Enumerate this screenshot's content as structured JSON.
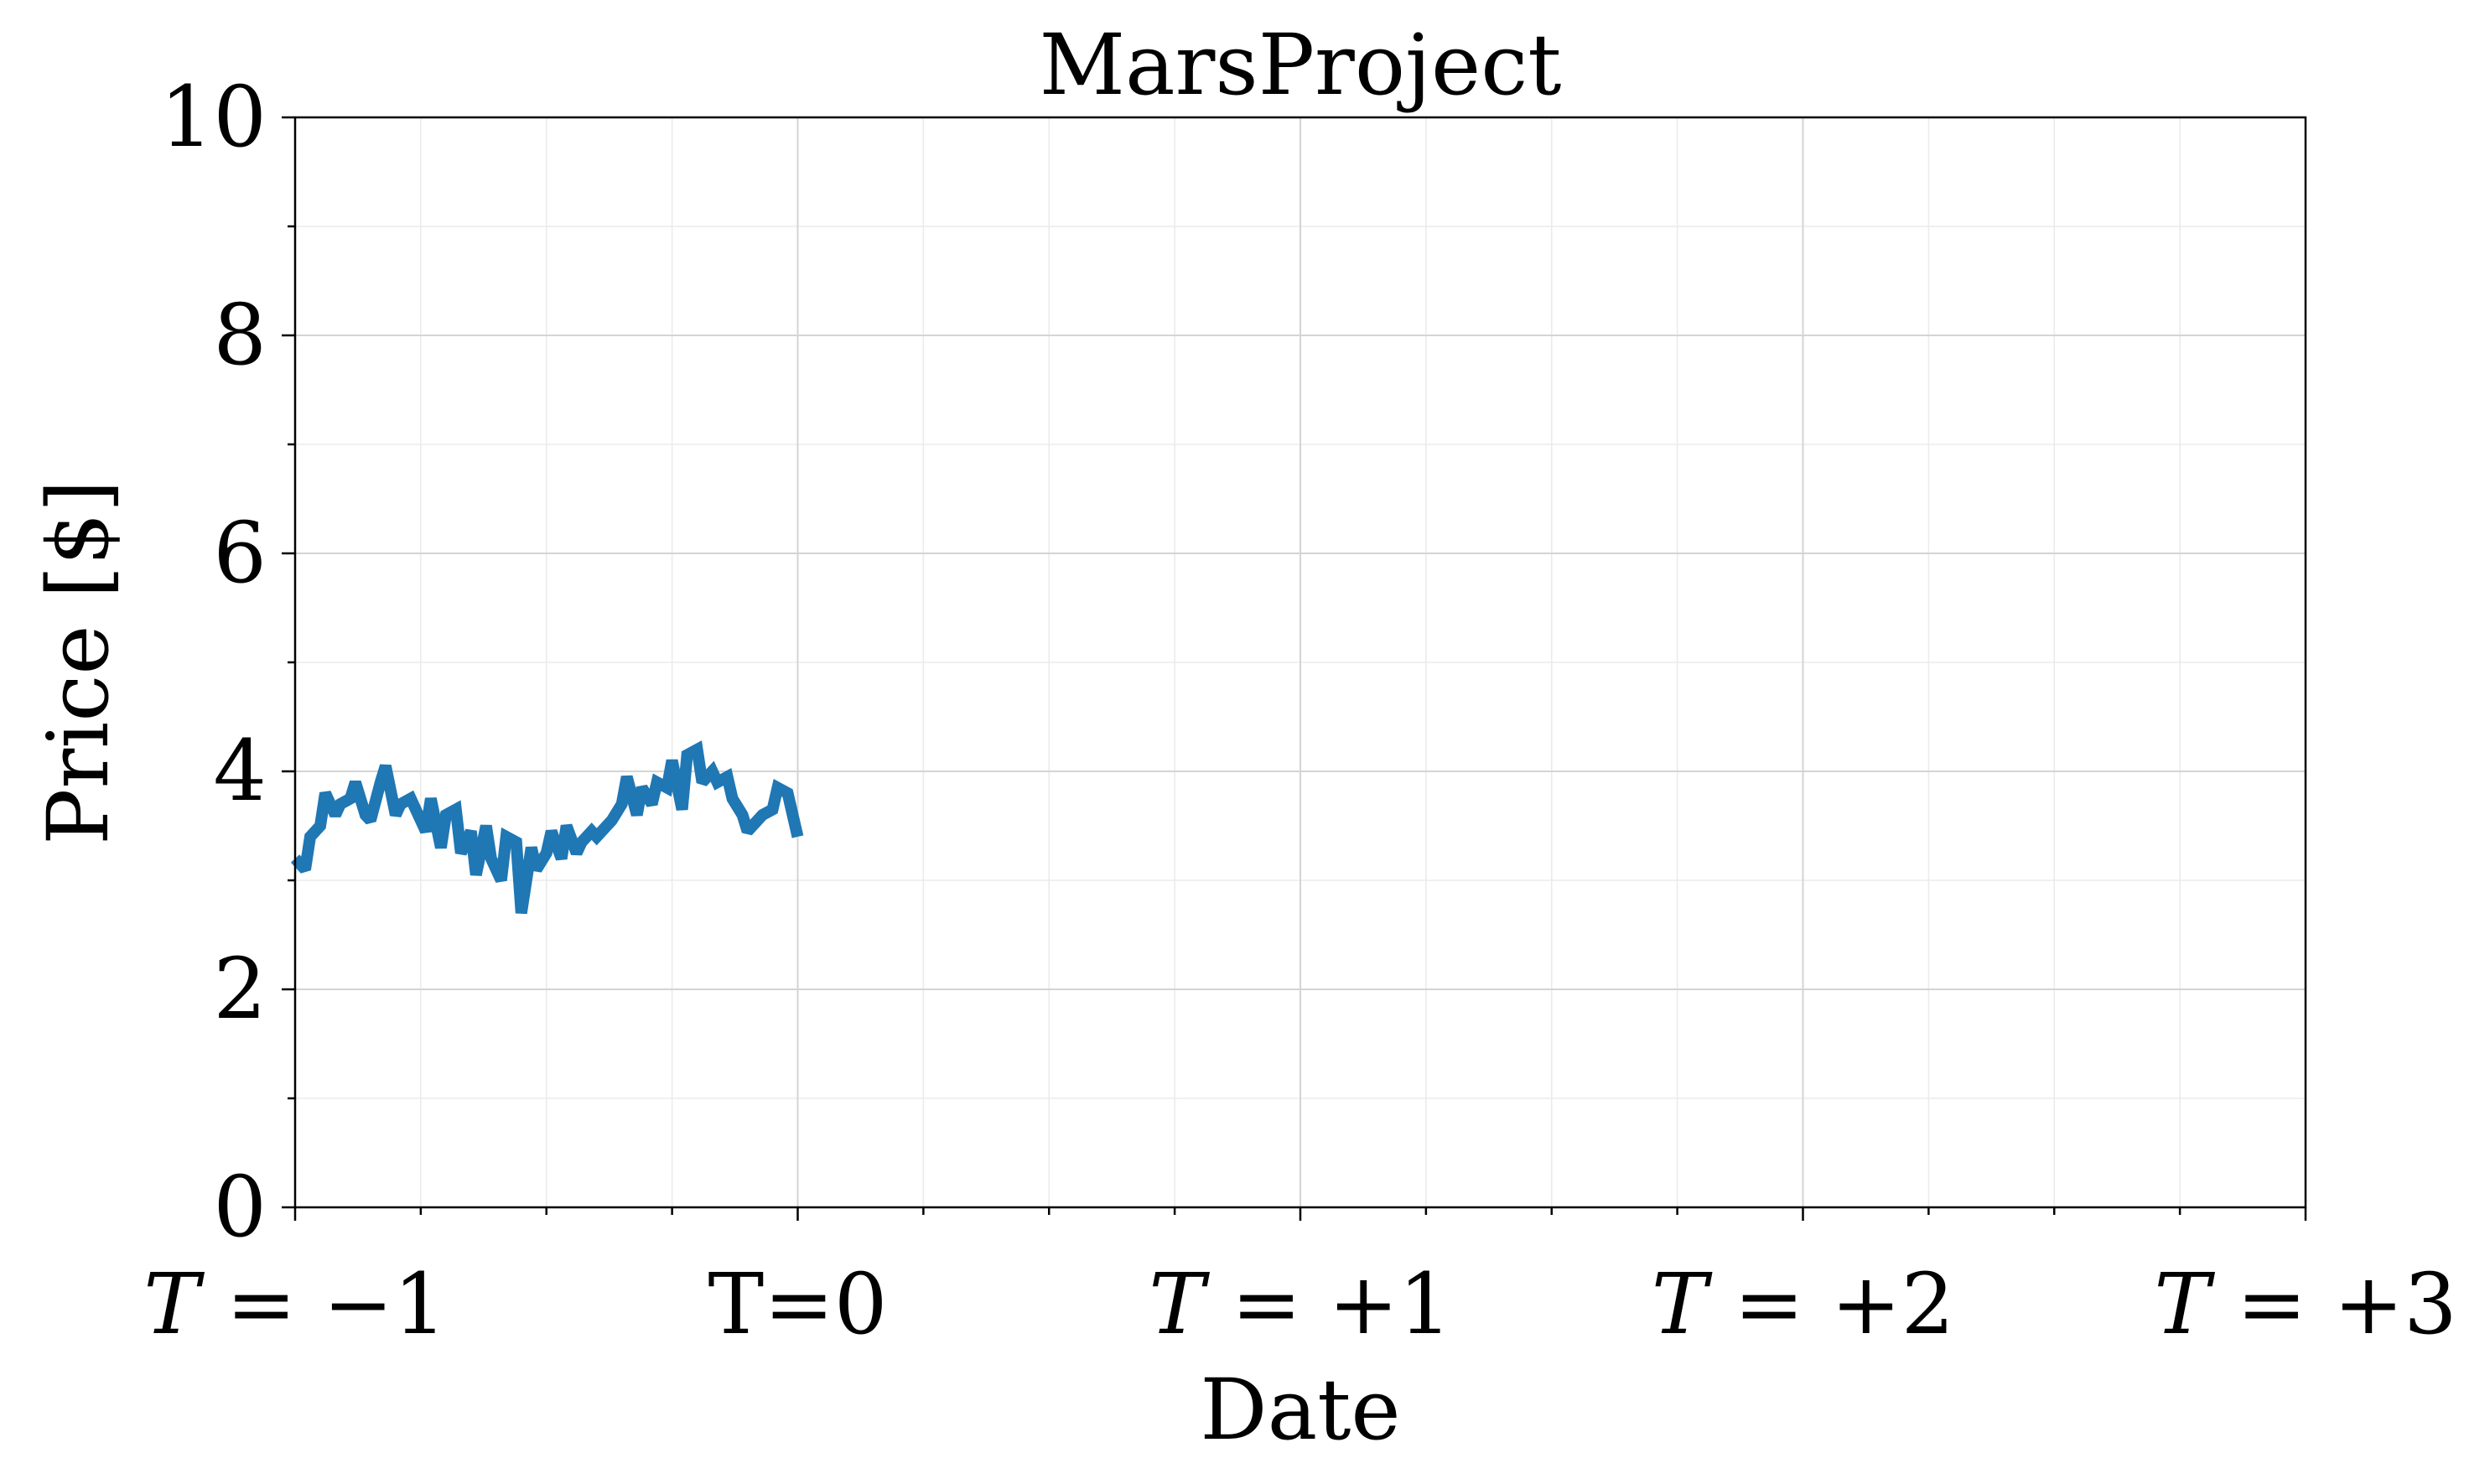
{
  "chart_data": {
    "type": "line",
    "title": "MarsProject",
    "xlabel": "Date",
    "ylabel": "Price [$]",
    "xlim": [
      -1,
      3
    ],
    "ylim": [
      0,
      10
    ],
    "grid": true,
    "legend": "none",
    "x_ticks": [
      {
        "value": -1,
        "label": "T = −1",
        "italic_t": true
      },
      {
        "value": 0,
        "label": "T=0",
        "italic_t": false
      },
      {
        "value": 1,
        "label": "T = +1",
        "italic_t": true
      },
      {
        "value": 2,
        "label": "T = +2",
        "italic_t": true
      },
      {
        "value": 3,
        "label": "T = +3",
        "italic_t": true
      }
    ],
    "y_ticks": [
      {
        "value": 0,
        "label": "0"
      },
      {
        "value": 2,
        "label": "2"
      },
      {
        "value": 4,
        "label": "4"
      },
      {
        "value": 6,
        "label": "6"
      },
      {
        "value": 8,
        "label": "8"
      },
      {
        "value": 10,
        "label": "10"
      }
    ],
    "series": [
      {
        "color": "#1f77b4",
        "x": [
          -1.0,
          -0.98,
          -0.97,
          -0.95,
          -0.94,
          -0.92,
          -0.91,
          -0.89,
          -0.88,
          -0.86,
          -0.85,
          -0.83,
          -0.82,
          -0.8,
          -0.79,
          -0.77,
          -0.76,
          -0.74,
          -0.73,
          -0.71,
          -0.7,
          -0.68,
          -0.67,
          -0.65,
          -0.64,
          -0.62,
          -0.61,
          -0.59,
          -0.58,
          -0.56,
          -0.55,
          -0.53,
          -0.52,
          -0.5,
          -0.49,
          -0.47,
          -0.46,
          -0.44,
          -0.43,
          -0.41,
          -0.4,
          -0.38,
          -0.37,
          -0.35,
          -0.34,
          -0.32,
          -0.31,
          -0.29,
          -0.28,
          -0.26,
          -0.25,
          -0.23,
          -0.22,
          -0.2,
          -0.19,
          -0.17,
          -0.16,
          -0.14,
          -0.13,
          -0.11,
          -0.1,
          -0.08,
          -0.07,
          -0.05,
          -0.04,
          -0.02,
          -0.01,
          0.0
        ],
        "y": [
          3.2,
          3.1,
          3.4,
          3.5,
          3.8,
          3.6,
          3.7,
          3.75,
          3.9,
          3.6,
          3.55,
          3.9,
          4.05,
          3.6,
          3.7,
          3.75,
          3.65,
          3.45,
          3.75,
          3.3,
          3.6,
          3.65,
          3.25,
          3.45,
          3.05,
          3.5,
          3.2,
          3.0,
          3.4,
          3.35,
          2.7,
          3.3,
          3.1,
          3.25,
          3.45,
          3.2,
          3.5,
          3.25,
          3.35,
          3.45,
          3.4,
          3.5,
          3.55,
          3.7,
          3.95,
          3.6,
          3.85,
          3.7,
          3.9,
          3.85,
          4.1,
          3.65,
          4.15,
          4.2,
          3.9,
          4.0,
          3.9,
          3.95,
          3.75,
          3.6,
          3.45,
          3.55,
          3.6,
          3.65,
          3.85,
          3.8,
          3.6,
          3.4
        ]
      }
    ]
  }
}
